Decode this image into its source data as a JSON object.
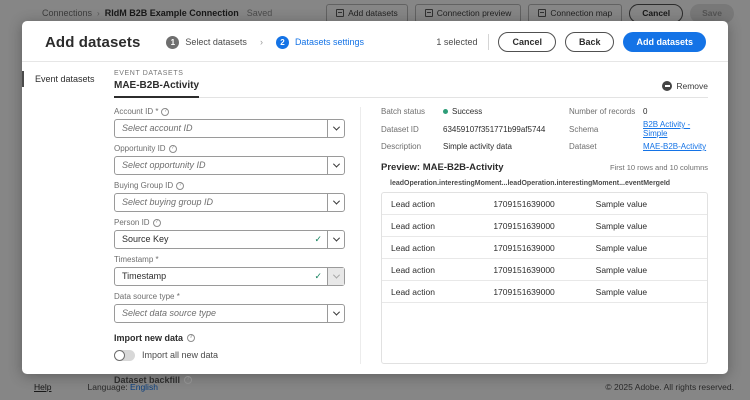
{
  "background": {
    "breadcrumb": {
      "root": "Connections",
      "separator": "›",
      "current": "RIdM B2B Example Connection",
      "status": "Saved"
    },
    "toolbar": {
      "add_datasets": "Add datasets",
      "connection_preview": "Connection preview",
      "connection_map": "Connection map",
      "cancel": "Cancel",
      "save": "Save"
    },
    "footer": {
      "help": "Help",
      "language_label": "Language:",
      "language_value": "English",
      "copyright": "© 2025 Adobe. All rights reserved."
    }
  },
  "modal": {
    "title": "Add datasets",
    "steps": [
      {
        "number": "1",
        "label": "Select datasets"
      },
      {
        "number": "2",
        "label": "Datasets settings"
      }
    ],
    "step_separator": "›",
    "selected_count": "1 selected",
    "actions": {
      "cancel": "Cancel",
      "back": "Back",
      "submit": "Add datasets"
    },
    "sidebar": {
      "items": [
        {
          "label": "Event datasets"
        }
      ]
    },
    "content": {
      "section_label": "EVENT DATASETS",
      "tab": "MAE-B2B-Activity",
      "remove_label": "Remove",
      "form": {
        "fields": [
          {
            "label": "Account ID *",
            "value": "Select account ID"
          },
          {
            "label": "Opportunity ID",
            "value": "Select opportunity ID"
          },
          {
            "label": "Buying Group ID",
            "value": "Select buying group ID"
          },
          {
            "label": "Person ID",
            "value": "Source Key"
          },
          {
            "label": "Timestamp *",
            "value": "Timestamp"
          },
          {
            "label": "Data source type *",
            "value": "Select data source type"
          }
        ],
        "check_glyph": "✓",
        "import_new_data_label": "Import new data",
        "import_toggle_label": "Import all new data",
        "dataset_backfill_label": "Dataset backfill"
      },
      "info": {
        "batch_status_label": "Batch status",
        "batch_status_value": "Success",
        "dataset_id_label": "Dataset ID",
        "dataset_id_value": "63459107f351771b99af5744",
        "description_label": "Description",
        "description_value": "Simple activity data",
        "records_label": "Number of records",
        "records_value": "0",
        "schema_label": "Schema",
        "schema_value": "B2B Activity - Simple",
        "dataset_label": "Dataset",
        "dataset_value": "MAE-B2B-Activity"
      },
      "preview": {
        "title": "Preview: MAE-B2B-Activity",
        "note": "First 10 rows and 10 columns",
        "columns": [
          "leadOperation.interestingMoment...",
          "leadOperation.interestingMoment...",
          "eventMergeId"
        ],
        "rows": [
          [
            "Lead action",
            "1709151639000",
            "Sample value"
          ],
          [
            "Lead action",
            "1709151639000",
            "Sample value"
          ],
          [
            "Lead action",
            "1709151639000",
            "Sample value"
          ],
          [
            "Lead action",
            "1709151639000",
            "Sample value"
          ],
          [
            "Lead action",
            "1709151639000",
            "Sample value"
          ]
        ]
      }
    }
  },
  "colors": {
    "accent": "#1473e6",
    "success": "#2d9d78",
    "valid": "#12805c"
  }
}
